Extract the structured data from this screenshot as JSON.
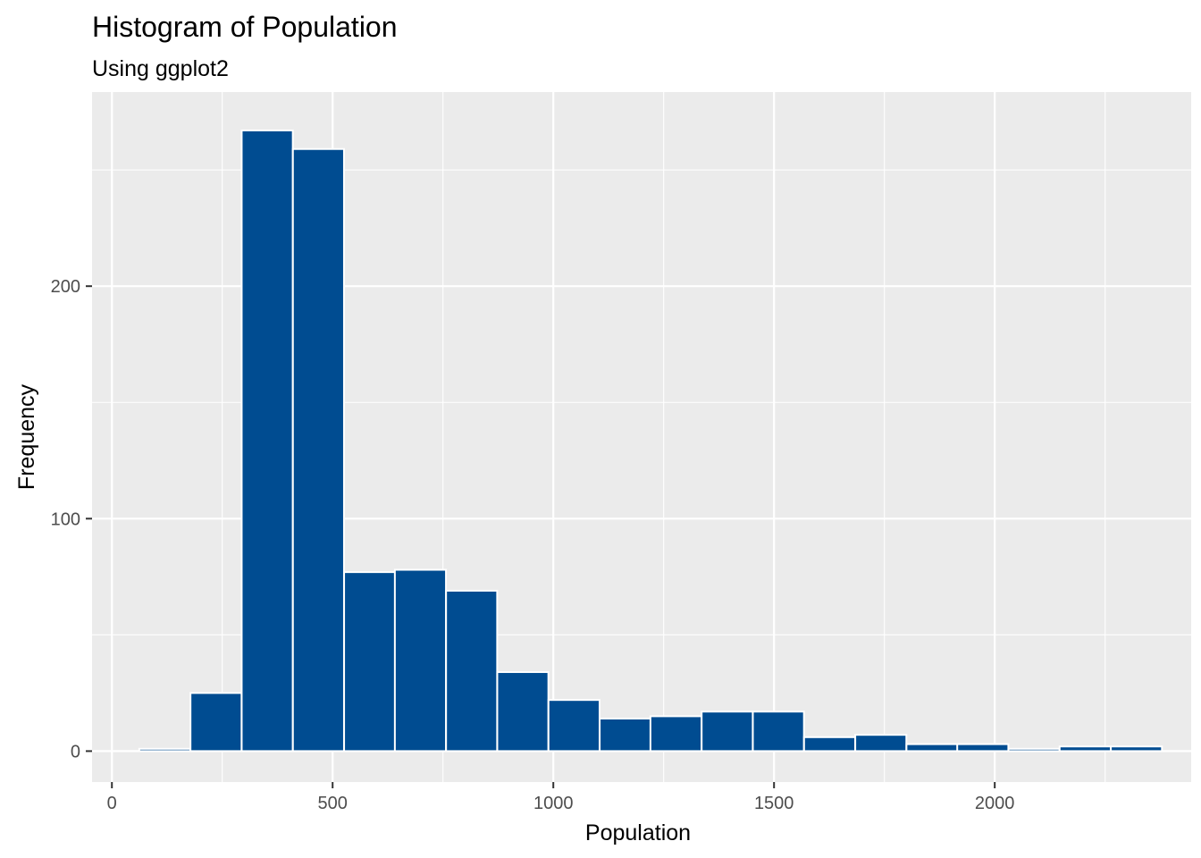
{
  "chart_data": {
    "type": "bar",
    "title": "Histogram of Population",
    "subtitle": "Using ggplot2",
    "xlabel": "Population",
    "ylabel": "Frequency",
    "xlim": [
      -45,
      2445
    ],
    "ylim": [
      -13.3,
      283.5
    ],
    "x_ticks": [
      0,
      500,
      1000,
      1500,
      2000
    ],
    "x_tick_labels": [
      "0",
      "500",
      "1000",
      "1500",
      "2000"
    ],
    "y_ticks": [
      0,
      100,
      200
    ],
    "y_tick_labels": [
      "0",
      "100",
      "200"
    ],
    "bin_width": 115.8,
    "bins": [
      {
        "x_start": 62,
        "count": 1
      },
      {
        "x_start": 178,
        "count": 25
      },
      {
        "x_start": 294,
        "count": 267
      },
      {
        "x_start": 410,
        "count": 259
      },
      {
        "x_start": 526,
        "count": 77
      },
      {
        "x_start": 641,
        "count": 78
      },
      {
        "x_start": 757,
        "count": 69
      },
      {
        "x_start": 873,
        "count": 34
      },
      {
        "x_start": 989,
        "count": 22
      },
      {
        "x_start": 1105,
        "count": 14
      },
      {
        "x_start": 1220,
        "count": 15
      },
      {
        "x_start": 1336,
        "count": 17
      },
      {
        "x_start": 1452,
        "count": 17
      },
      {
        "x_start": 1568,
        "count": 6
      },
      {
        "x_start": 1684,
        "count": 7
      },
      {
        "x_start": 1800,
        "count": 3
      },
      {
        "x_start": 1915,
        "count": 3
      },
      {
        "x_start": 2031,
        "count": 1
      },
      {
        "x_start": 2147,
        "count": 2
      },
      {
        "x_start": 2263,
        "count": 2
      }
    ],
    "colors": {
      "bar_fill": "#004C91",
      "bar_outline": "#FFFFFF",
      "panel_background": "#EBEBEB",
      "grid": "#FFFFFF"
    },
    "grid": true,
    "legend": "none"
  }
}
